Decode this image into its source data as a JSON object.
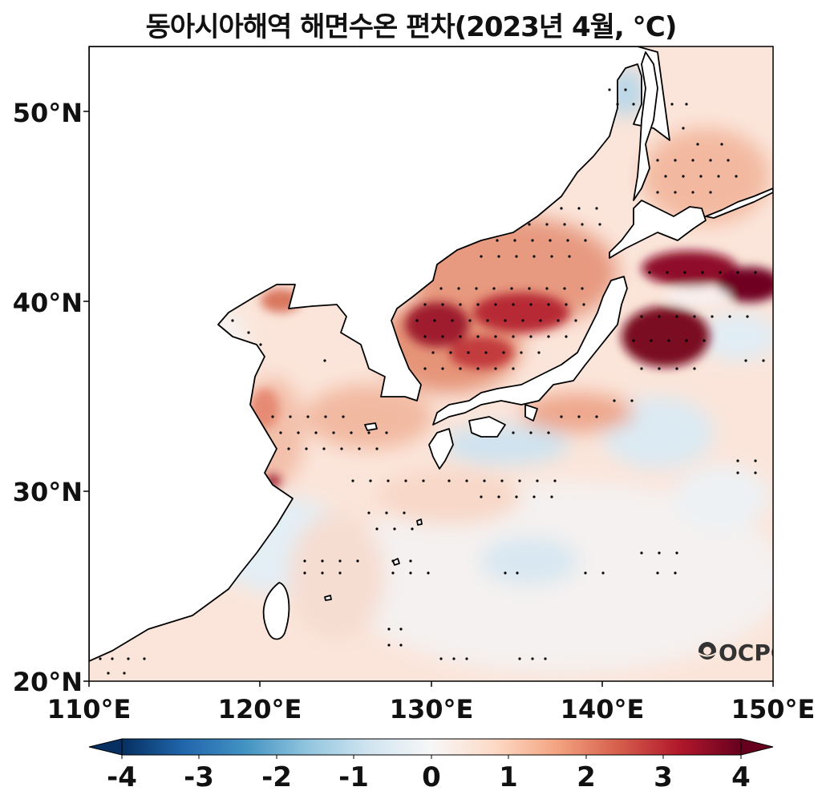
{
  "title": "동아시아해역 해면수온 편차(2023년 4월, ℃)",
  "y_ticks": [
    "50°N",
    "40°N",
    "30°N",
    "20°N"
  ],
  "x_ticks": [
    "110°E",
    "120°E",
    "130°E",
    "140°E",
    "150°E"
  ],
  "colorbar": {
    "ticks": [
      "-4",
      "-3",
      "-2",
      "-1",
      "0",
      "1",
      "2",
      "3",
      "4"
    ],
    "range": [
      -4,
      4
    ],
    "extend": "both",
    "colormap": "RdBu_r",
    "colors": [
      "#053061",
      "#2166ac",
      "#4393c3",
      "#92c5de",
      "#d1e5f0",
      "#f7f7f7",
      "#fddbc7",
      "#f4a582",
      "#d6604d",
      "#b2182b",
      "#67001f"
    ]
  },
  "logo": "OCPC",
  "colors": {
    "land": "#ffffff",
    "coast": "#000000",
    "stipple": "#000000"
  }
}
